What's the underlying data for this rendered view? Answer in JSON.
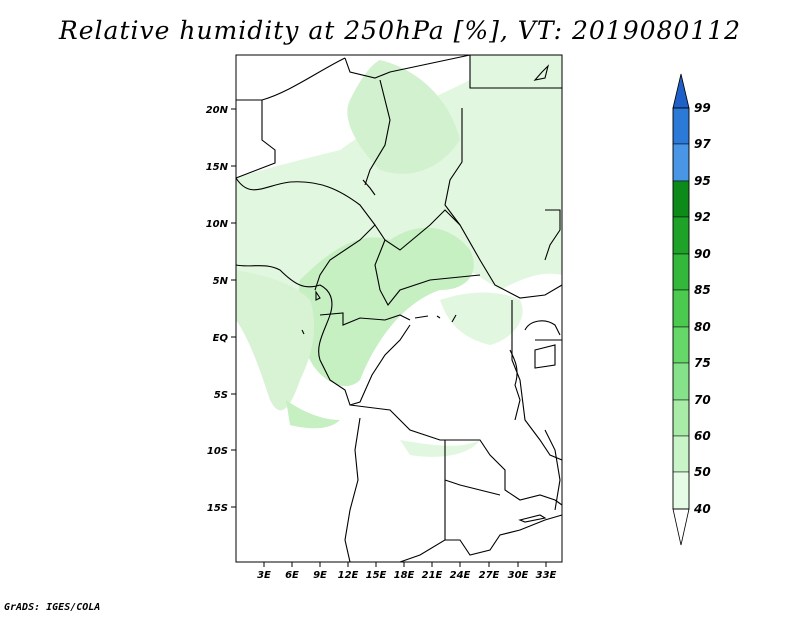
{
  "title": "Relative humidity at 250hPa [%], VT: 2019080112",
  "credit": "GrADS: IGES/COLA",
  "lat_labels": [
    "20N",
    "15N",
    "10N",
    "5N",
    "EQ",
    "5S",
    "10S",
    "15S"
  ],
  "lon_labels": [
    "3E",
    "6E",
    "9E",
    "12E",
    "15E",
    "18E",
    "21E",
    "24E",
    "27E",
    "30E",
    "33E"
  ],
  "colorbar": {
    "levels": [
      "99",
      "97",
      "95",
      "92",
      "90",
      "85",
      "80",
      "75",
      "70",
      "60",
      "50",
      "40"
    ],
    "colors": [
      "#1e60c8",
      "#2c7ad8",
      "#4a96e6",
      "#0e8a1a",
      "#1ea228",
      "#34b83c",
      "#4cca50",
      "#66d86a",
      "#86e28a",
      "#a8eca8",
      "#c8f4c8",
      "#e6fbe6",
      "#ffffff"
    ]
  },
  "colors": {
    "fill_light": "#e2f7e0",
    "fill_mid": "#c6efc2",
    "fill_strong": "#a7e4a2"
  }
}
